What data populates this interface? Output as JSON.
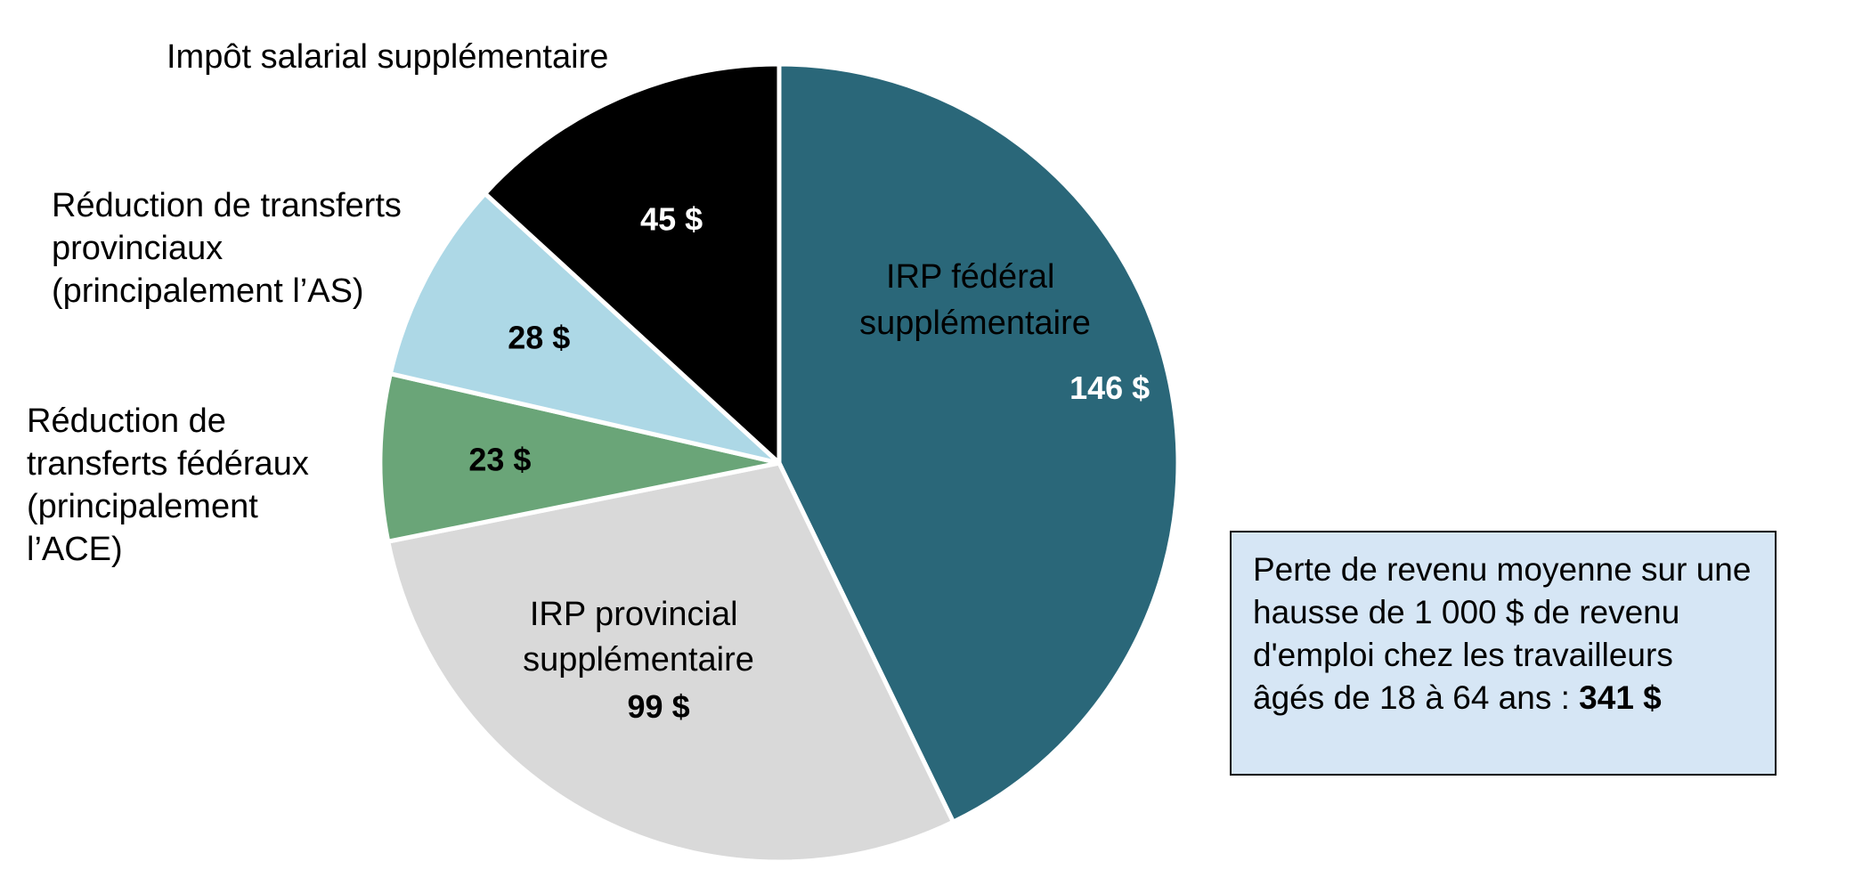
{
  "chart_data": {
    "type": "pie",
    "total_label": "341 $",
    "slices": [
      {
        "name": "IRP fédéral supplémentaire",
        "value": 146,
        "value_label": "146 $",
        "color": "#2a6779",
        "value_color": "#ffffff"
      },
      {
        "name": "IRP provincial supplémentaire",
        "value": 99,
        "value_label": "99 $",
        "color": "#d9d9d9",
        "value_color": "#000000"
      },
      {
        "name": "Réduction de transferts fédéraux (principalement l’ACE)",
        "value": 23,
        "value_label": "23 $",
        "color": "#6aa578",
        "value_color": "#000000"
      },
      {
        "name": "Réduction de transferts provinciaux (principalement l’AS)",
        "value": 28,
        "value_label": "28 $",
        "color": "#add8e6",
        "value_color": "#000000"
      },
      {
        "name": "Impôt salarial supplémentaire",
        "value": 45,
        "value_label": "45 $",
        "color": "#000000",
        "value_color": "#ffffff"
      }
    ],
    "labels": {
      "federal_irp": [
        "IRP fédéral",
        "supplémentaire"
      ],
      "provincial_irp": [
        "IRP provincial",
        "supplémentaire"
      ],
      "federal_transfers": [
        "Réduction de",
        "transferts fédéraux",
        "(principalement",
        "l’ACE)"
      ],
      "provincial_transfers": [
        "Réduction de transferts",
        "provinciaux",
        "(principalement l’AS)"
      ],
      "payroll_tax": [
        "Impôt salarial supplémentaire"
      ]
    }
  },
  "note": {
    "text": "Perte de revenu moyenne sur une hausse de 1 000 $ de revenu d'emploi chez les travailleurs âgés de 18 à 64 ans : ",
    "total": "341 $"
  }
}
